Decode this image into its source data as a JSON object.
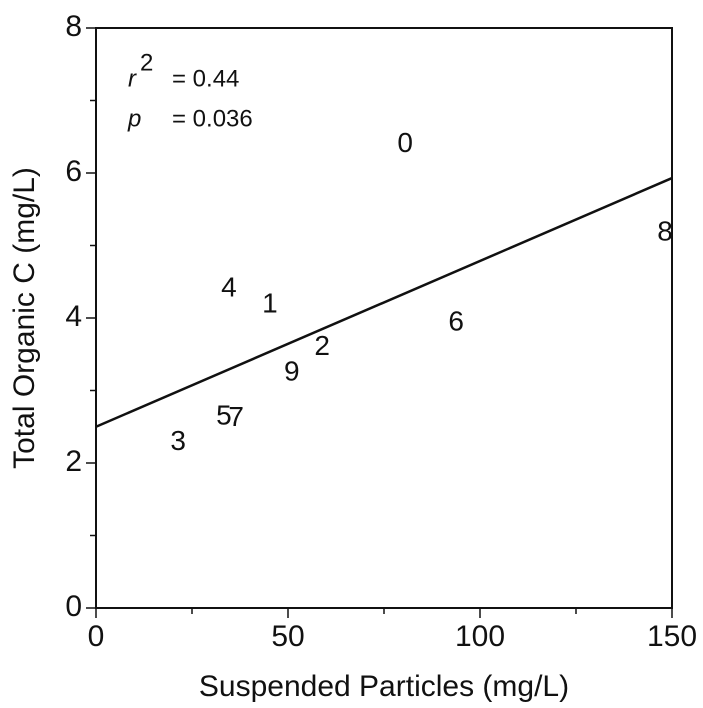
{
  "chart_data": {
    "type": "scatter",
    "x_label": "Suspended Particles (mg/L)",
    "y_label": "Total Organic C (mg/L)",
    "xlim": [
      0,
      150
    ],
    "ylim": [
      0,
      8
    ],
    "xticks": [
      0,
      50,
      100,
      150
    ],
    "yticks": [
      0,
      2,
      4,
      6,
      8
    ],
    "xminorticks": [
      25,
      75,
      125
    ],
    "yminorticks": [
      1,
      3,
      5,
      7
    ],
    "color": "#111111",
    "series": [
      {
        "labels": [
          "0",
          "8",
          "4",
          "1",
          "6",
          "2",
          "9",
          "5",
          "7",
          "3"
        ],
        "x": [
          80.5,
          148.2,
          34.6,
          45.3,
          93.8,
          58.9,
          51.0,
          33.3,
          36.5,
          21.4
        ],
        "y": [
          6.39,
          5.17,
          4.4,
          4.18,
          3.93,
          3.59,
          3.24,
          2.63,
          2.61,
          2.28
        ]
      }
    ],
    "fit_line": {
      "x": [
        0,
        150
      ],
      "y": [
        2.5,
        5.93
      ]
    },
    "annotations": {
      "r_symbol": "r",
      "r_exponent": "2",
      "r_value": "= 0.44",
      "p_symbol": "p",
      "p_value": "= 0.036"
    }
  }
}
